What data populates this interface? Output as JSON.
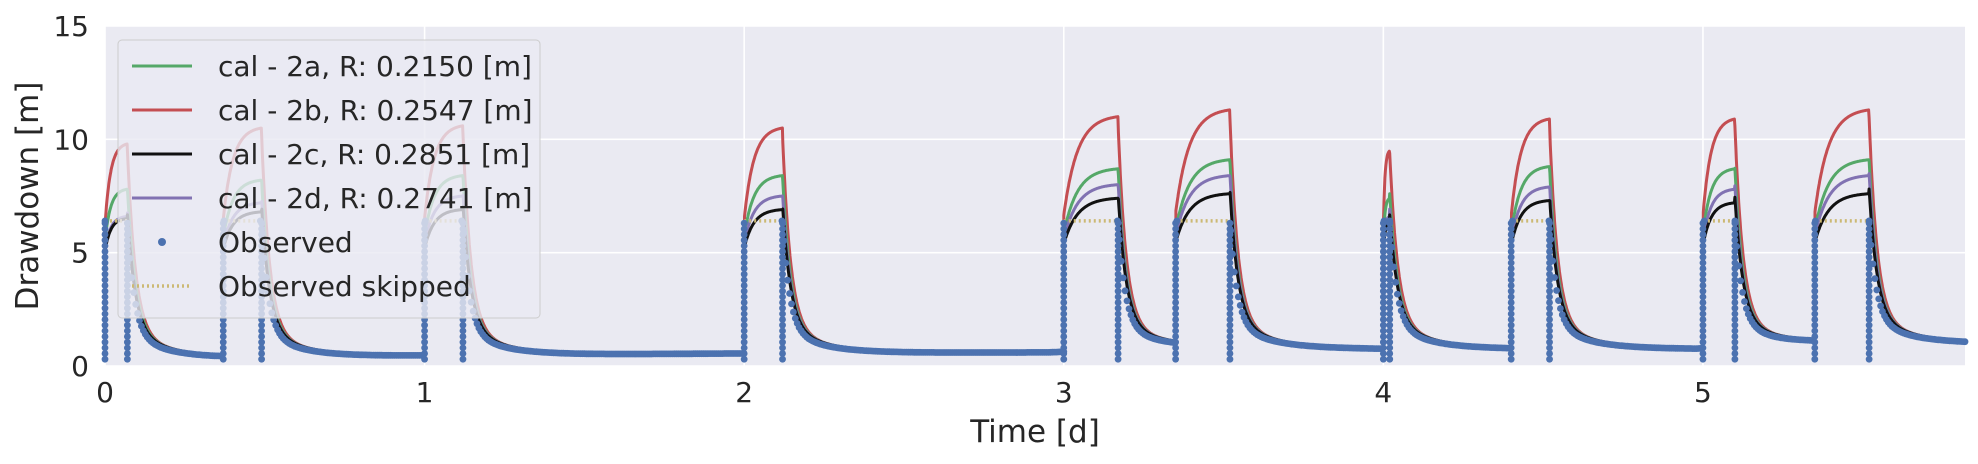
{
  "chart_data": {
    "type": "line",
    "title": "",
    "xlabel": "Time [d]",
    "ylabel": "Drawdown [m]",
    "xlim": [
      0,
      5.82
    ],
    "ylim": [
      0,
      15
    ],
    "xticks": [
      0,
      1,
      2,
      3,
      4,
      5
    ],
    "yticks": [
      0,
      5,
      10,
      15
    ],
    "grid": true,
    "legend_position": "top-left",
    "background": "#eaeaf2",
    "pumping_periods": [
      {
        "start": 0.0,
        "end": 0.07,
        "peaks": {
          "cal_2a": 7.8,
          "cal_2b": 9.8,
          "cal_2c": 6.5,
          "cal_2d": 6.6
        }
      },
      {
        "start": 0.37,
        "end": 0.49,
        "peaks": {
          "cal_2a": 8.2,
          "cal_2b": 10.5,
          "cal_2c": 6.8,
          "cal_2d": 7.2
        }
      },
      {
        "start": 1.0,
        "end": 1.12,
        "peaks": {
          "cal_2a": 8.4,
          "cal_2b": 10.6,
          "cal_2c": 6.9,
          "cal_2d": 7.5
        }
      },
      {
        "start": 2.0,
        "end": 2.12,
        "peaks": {
          "cal_2a": 8.4,
          "cal_2b": 10.5,
          "cal_2c": 6.9,
          "cal_2d": 7.5
        }
      },
      {
        "start": 3.0,
        "end": 3.17,
        "peaks": {
          "cal_2a": 8.7,
          "cal_2b": 11.0,
          "cal_2c": 7.4,
          "cal_2d": 8.0
        }
      },
      {
        "start": 3.35,
        "end": 3.52,
        "peaks": {
          "cal_2a": 9.1,
          "cal_2b": 11.3,
          "cal_2c": 7.6,
          "cal_2d": 8.4
        }
      },
      {
        "start": 4.0,
        "end": 4.02,
        "peaks": {
          "cal_2a": 7.4,
          "cal_2b": 9.5,
          "cal_2c": 6.3,
          "cal_2d": 6.6
        }
      },
      {
        "start": 4.4,
        "end": 4.52,
        "peaks": {
          "cal_2a": 8.8,
          "cal_2b": 10.9,
          "cal_2c": 7.3,
          "cal_2d": 7.9
        }
      },
      {
        "start": 5.0,
        "end": 5.1,
        "peaks": {
          "cal_2a": 8.7,
          "cal_2b": 10.9,
          "cal_2c": 7.2,
          "cal_2d": 7.8
        }
      },
      {
        "start": 5.35,
        "end": 5.52,
        "peaks": {
          "cal_2a": 9.1,
          "cal_2b": 11.3,
          "cal_2c": 7.6,
          "cal_2d": 8.4
        }
      }
    ],
    "observed_plateau": 6.4,
    "baseline_drawdown": [
      {
        "x": 0.3,
        "y": 0.35
      },
      {
        "x": 0.95,
        "y": 0.45
      },
      {
        "x": 1.95,
        "y": 0.55
      },
      {
        "x": 2.95,
        "y": 0.6
      },
      {
        "x": 3.33,
        "y": 0.8
      },
      {
        "x": 3.98,
        "y": 0.75
      },
      {
        "x": 4.38,
        "y": 0.75
      },
      {
        "x": 4.98,
        "y": 0.75
      },
      {
        "x": 5.33,
        "y": 1.0
      },
      {
        "x": 5.8,
        "y": 1.0
      }
    ],
    "series": [
      {
        "key": "cal_2a",
        "name": "cal - 2a, R: 0.2150 [m]",
        "color": "#55a868",
        "style": "solid"
      },
      {
        "key": "cal_2b",
        "name": "cal - 2b, R: 0.2547 [m]",
        "color": "#c44e52",
        "style": "solid"
      },
      {
        "key": "cal_2c",
        "name": "cal - 2c, R: 0.2851 [m]",
        "color": "#111111",
        "style": "solid"
      },
      {
        "key": "cal_2d",
        "name": "cal - 2d, R: 0.2741 [m]",
        "color": "#8172b2",
        "style": "solid"
      },
      {
        "key": "observed",
        "name": "Observed",
        "color": "#4c72b0",
        "style": "points"
      },
      {
        "key": "observed_skipped",
        "name": "Observed skipped",
        "color": "#ccb974",
        "style": "dotted"
      }
    ]
  }
}
